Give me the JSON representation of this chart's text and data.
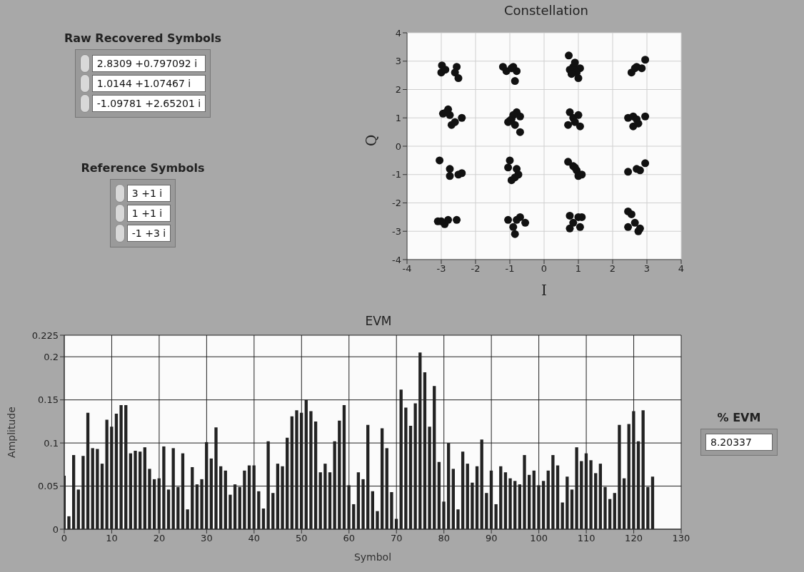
{
  "chart_data": [
    {
      "type": "other",
      "title": "Raw Recovered Symbols",
      "annotations": [
        "2.8309 +0.797092 i",
        "1.0144 +1.07467 i",
        "-1.09781 +2.65201 i"
      ]
    },
    {
      "type": "other",
      "title": "Reference Symbols",
      "annotations": [
        "3 +1 i",
        "1 +1 i",
        "-1 +3 i"
      ]
    },
    {
      "type": "scatter",
      "title": "Constellation",
      "xlabel": "I",
      "ylabel": "Q",
      "xlim": [
        -4,
        4
      ],
      "ylim": [
        -4,
        4
      ],
      "xticks": [
        -4,
        -3,
        -2,
        -1,
        0,
        1,
        2,
        3,
        4
      ],
      "yticks": [
        -4,
        -3,
        -2,
        -1,
        0,
        1,
        2,
        3,
        4
      ],
      "grid": true,
      "marker": "circle",
      "color": "#111111",
      "x": [
        -2.98,
        -3.0,
        -2.88,
        -2.55,
        -2.6,
        -2.5,
        -1.2,
        -1.1,
        -0.9,
        -0.8,
        -0.85,
        -0.95,
        0.72,
        0.85,
        0.9,
        1.05,
        0.75,
        0.95,
        1.0,
        0.8,
        2.55,
        2.7,
        2.85,
        2.95,
        2.65,
        -2.95,
        -2.8,
        -2.75,
        -2.7,
        -2.6,
        -2.4,
        -2.85,
        -1.05,
        -0.95,
        -0.8,
        -0.7,
        -0.85,
        -0.7,
        -0.9,
        -1.0,
        0.75,
        0.7,
        0.85,
        1.0,
        1.05,
        0.9,
        2.45,
        2.6,
        2.6,
        2.75,
        2.95,
        2.7,
        -3.05,
        -2.75,
        -2.75,
        -2.5,
        -2.4,
        -1.0,
        -1.05,
        -0.8,
        -0.75,
        -0.95,
        -0.85,
        0.7,
        0.85,
        0.95,
        1.0,
        1.1,
        0.9,
        2.45,
        2.7,
        2.8,
        2.95,
        -3.1,
        -2.9,
        -2.8,
        -2.55,
        -3.0,
        -1.05,
        -0.9,
        -0.85,
        -0.7,
        -0.55,
        -0.8,
        0.75,
        0.75,
        0.85,
        1.0,
        1.05,
        1.1,
        2.45,
        2.55,
        2.45,
        2.65,
        2.75,
        2.8
      ],
      "values": [
        2.85,
        2.6,
        2.7,
        2.8,
        2.6,
        2.4,
        2.8,
        2.65,
        2.8,
        2.65,
        2.3,
        2.75,
        3.2,
        2.8,
        2.95,
        2.75,
        2.7,
        2.6,
        2.4,
        2.55,
        2.6,
        2.8,
        2.75,
        3.05,
        2.75,
        1.15,
        1.3,
        1.1,
        0.75,
        0.85,
        1.0,
        1.2,
        0.85,
        0.95,
        1.2,
        1.05,
        0.75,
        0.5,
        1.1,
        0.9,
        1.2,
        0.75,
        1.0,
        1.1,
        0.7,
        0.85,
        1.0,
        1.05,
        0.7,
        0.8,
        1.05,
        0.95,
        -0.5,
        -0.8,
        -1.05,
        -1.0,
        -0.95,
        -0.5,
        -0.75,
        -0.8,
        -1.0,
        -1.2,
        -1.1,
        -0.55,
        -0.7,
        -0.85,
        -1.05,
        -1.0,
        -0.75,
        -0.9,
        -0.8,
        -0.85,
        -0.6,
        -2.65,
        -2.75,
        -2.6,
        -2.6,
        -2.65,
        -2.6,
        -2.85,
        -3.1,
        -2.5,
        -2.7,
        -2.6,
        -2.45,
        -2.9,
        -2.7,
        -2.5,
        -2.85,
        -2.5,
        -2.3,
        -2.4,
        -2.85,
        -2.7,
        -3.0,
        -2.9
      ]
    },
    {
      "type": "bar",
      "title": "EVM",
      "xlabel": "Symbol",
      "ylabel": "Amplitude",
      "xlim": [
        0,
        130
      ],
      "xticks": [
        0,
        10,
        20,
        30,
        40,
        50,
        60,
        70,
        80,
        90,
        100,
        110,
        120,
        130
      ],
      "ylim": [
        0,
        0.225
      ],
      "yticks": [
        0,
        0.05,
        0.1,
        0.15,
        0.2,
        0.225
      ],
      "grid": true,
      "color": "#222222",
      "x": [
        0,
        1,
        2,
        3,
        4,
        5,
        6,
        7,
        8,
        9,
        10,
        11,
        12,
        13,
        14,
        15,
        16,
        17,
        18,
        19,
        20,
        21,
        22,
        23,
        24,
        25,
        26,
        27,
        28,
        29,
        30,
        31,
        32,
        33,
        34,
        35,
        36,
        37,
        38,
        39,
        40,
        41,
        42,
        43,
        44,
        45,
        46,
        47,
        48,
        49,
        50,
        51,
        52,
        53,
        54,
        55,
        56,
        57,
        58,
        59,
        60,
        61,
        62,
        63,
        64,
        65,
        66,
        67,
        68,
        69,
        70,
        71,
        72,
        73,
        74,
        75,
        76,
        77,
        78,
        79,
        80,
        81,
        82,
        83,
        84,
        85,
        86,
        87,
        88,
        89,
        90,
        91,
        92,
        93,
        94,
        95,
        96,
        97,
        98,
        99,
        100,
        101,
        102,
        103,
        104,
        105,
        106,
        107,
        108,
        109,
        110,
        111,
        112,
        113,
        114,
        115,
        116,
        117,
        118,
        119,
        120,
        121,
        122,
        123,
        124
      ],
      "values": [
        0.062,
        0.015,
        0.086,
        0.046,
        0.085,
        0.135,
        0.094,
        0.093,
        0.076,
        0.127,
        0.119,
        0.134,
        0.144,
        0.144,
        0.088,
        0.091,
        0.09,
        0.095,
        0.07,
        0.058,
        0.059,
        0.096,
        0.046,
        0.094,
        0.049,
        0.088,
        0.023,
        0.072,
        0.052,
        0.058,
        0.101,
        0.082,
        0.118,
        0.073,
        0.068,
        0.04,
        0.052,
        0.049,
        0.068,
        0.074,
        0.074,
        0.044,
        0.024,
        0.102,
        0.042,
        0.076,
        0.073,
        0.106,
        0.131,
        0.138,
        0.135,
        0.15,
        0.137,
        0.125,
        0.066,
        0.076,
        0.066,
        0.102,
        0.126,
        0.144,
        0.051,
        0.029,
        0.066,
        0.058,
        0.121,
        0.044,
        0.021,
        0.117,
        0.094,
        0.043,
        0.012,
        0.162,
        0.141,
        0.12,
        0.146,
        0.205,
        0.182,
        0.119,
        0.166,
        0.078,
        0.032,
        0.1,
        0.07,
        0.023,
        0.09,
        0.076,
        0.054,
        0.073,
        0.104,
        0.042,
        0.068,
        0.029,
        0.073,
        0.066,
        0.059,
        0.056,
        0.052,
        0.086,
        0.063,
        0.068,
        0.051,
        0.056,
        0.068,
        0.086,
        0.074,
        0.031,
        0.061,
        0.046,
        0.095,
        0.079,
        0.088,
        0.08,
        0.065,
        0.076,
        0.049,
        0.035,
        0.042,
        0.121,
        0.059,
        0.122,
        0.137,
        0.102,
        0.138,
        0.049,
        0.061
      ]
    },
    {
      "type": "other",
      "title": "% EVM",
      "annotations": [
        "8.20337"
      ]
    }
  ]
}
